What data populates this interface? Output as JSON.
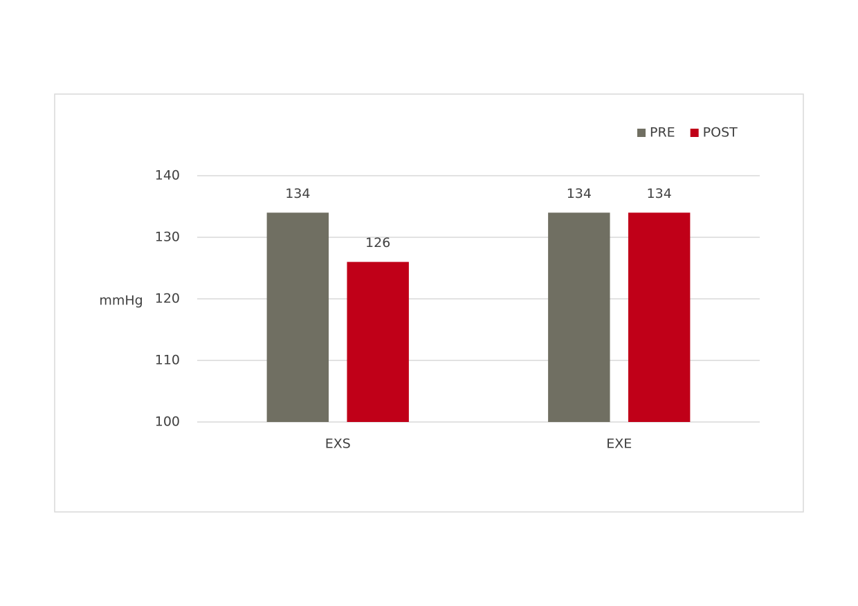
{
  "chart_data": {
    "type": "bar",
    "y_label": "mmHg",
    "categories": [
      "EXS",
      "EXE"
    ],
    "series": [
      {
        "name": "PRE",
        "color": "#706f62",
        "values": [
          134,
          134
        ]
      },
      {
        "name": "POST",
        "color": "#c00018",
        "values": [
          126,
          134
        ]
      }
    ],
    "ylim": [
      100,
      140
    ],
    "yticks": [
      100,
      110,
      120,
      130,
      140
    ],
    "grid": true,
    "legend": "top-right"
  }
}
